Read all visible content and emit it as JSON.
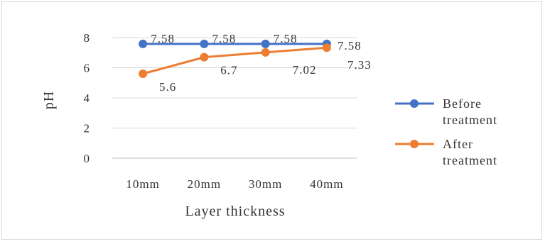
{
  "chart_data": {
    "type": "line",
    "title": "",
    "xlabel": "Layer thickness",
    "ylabel": "pH",
    "categories": [
      "10mm",
      "20mm",
      "30mm",
      "40mm"
    ],
    "ylim": [
      0,
      8
    ],
    "yticks": [
      "0",
      "2",
      "4",
      "6",
      "8"
    ],
    "grid": true,
    "legend": "right",
    "series": [
      {
        "name_lines": [
          "Before",
          "treatment"
        ],
        "values": [
          7.58,
          7.58,
          7.58,
          7.58
        ],
        "labels": [
          "7.58",
          "7.58",
          "7.58",
          "7.58"
        ],
        "color": "#4472C4"
      },
      {
        "name_lines": [
          "After",
          "treatment"
        ],
        "values": [
          5.6,
          6.7,
          7.02,
          7.33
        ],
        "labels": [
          "5.6",
          "6.7",
          "7.02",
          "7.33"
        ],
        "color": "#ED7D31"
      }
    ]
  }
}
